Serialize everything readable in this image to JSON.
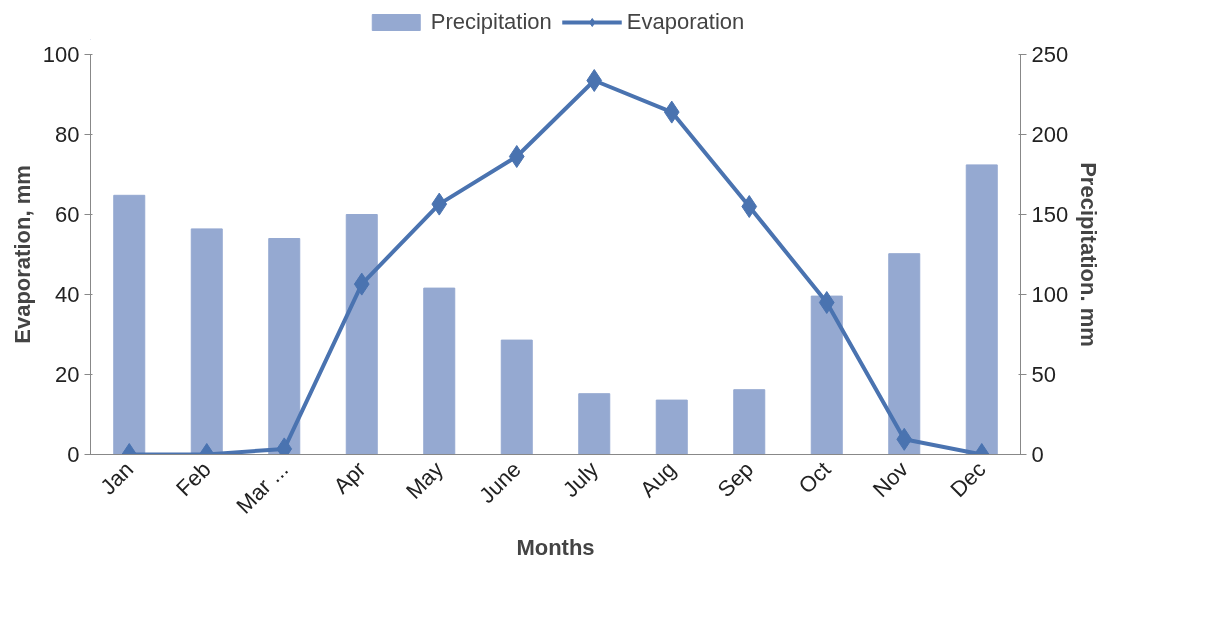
{
  "chart_data": {
    "type": "bar",
    "xlabel": "Months",
    "ylabel": "Evaporation, mm",
    "y2label": "Precipitation. mm",
    "categories": [
      "Jan",
      "Feb",
      "Mar ...",
      "Apr",
      "May",
      "June",
      "July",
      "Aug",
      "Sep",
      "Oct",
      "Nov",
      "Dec"
    ],
    "series": [
      {
        "name": "Precipitation",
        "axis": "y2",
        "color": "#95a9d1",
        "values": [
          162,
          141,
          135,
          150,
          104,
          71.5,
          38,
          34,
          40.5,
          99,
          125.5,
          181
        ]
      },
      {
        "name": "Evaporation",
        "type": "line",
        "axis": "y",
        "color": "#4a73b0",
        "marker": "diamond",
        "line_style": "solid",
        "values": [
          0,
          0,
          1.4,
          42.6,
          62.6,
          74.5,
          93.5,
          85.6,
          62,
          38,
          3.8,
          0
        ]
      }
    ],
    "ylim": [
      0,
      100
    ],
    "yticks": [
      0,
      20,
      40,
      60,
      80,
      100
    ],
    "y2lim": [
      0,
      250
    ],
    "y2ticks": [
      0,
      50,
      100,
      150,
      200,
      250
    ],
    "grid": false,
    "legend": "top"
  }
}
